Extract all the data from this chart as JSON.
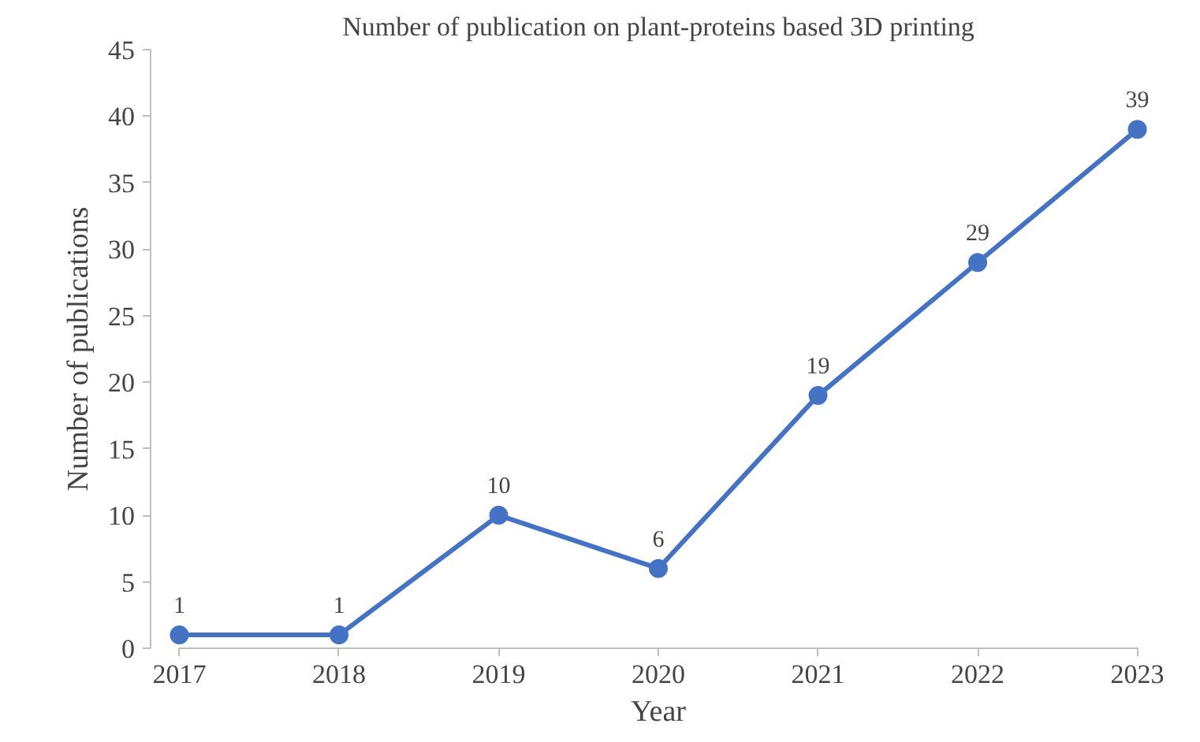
{
  "chart_data": {
    "type": "line",
    "title": "Number of publication on plant-proteins based 3D printing",
    "xlabel": "Year",
    "ylabel": "Number of publications",
    "x": [
      2017,
      2018,
      2019,
      2020,
      2021,
      2022,
      2023
    ],
    "series": [
      {
        "color": "#4472c4",
        "values": [
          1,
          1,
          10,
          6,
          19,
          29,
          39
        ]
      }
    ],
    "xlim": [
      2017,
      2023
    ],
    "xticks": [
      2017,
      2018,
      2019,
      2020,
      2021,
      2022,
      2023
    ],
    "ylim": [
      0,
      45
    ],
    "yticks": [
      0,
      5,
      10,
      15,
      20,
      25,
      30,
      35,
      40,
      45
    ],
    "grid": false,
    "marker": "circle",
    "line_style": "solid",
    "data_labels": true
  }
}
